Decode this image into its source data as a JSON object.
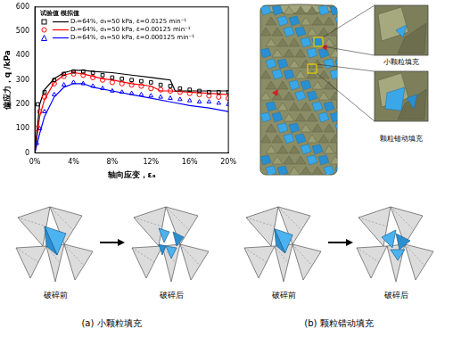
{
  "chart_data": {
    "type": "line",
    "x_label": "轴向应变，εₐ",
    "y_label": "偏应力，q /kPa",
    "legend_title": "试验值 模拟值",
    "legend": "upper left",
    "grid": false,
    "xlim": [
      0,
      20
    ],
    "xticks": [
      {
        "value": 0,
        "label": "0%"
      },
      {
        "value": 4,
        "label": "4%"
      },
      {
        "value": 8,
        "label": "8%"
      },
      {
        "value": 12,
        "label": "12%"
      },
      {
        "value": 16,
        "label": "16%"
      },
      {
        "value": 20,
        "label": "20%"
      }
    ],
    "ylim": [
      0,
      600
    ],
    "yticks": [
      0,
      100,
      200,
      300,
      400,
      500,
      600
    ],
    "series": [
      {
        "name": "Dᵣ=64%, σ₃=50 kPa, ε̇=0.0125 min⁻¹",
        "type": "scatter",
        "marker": "square",
        "color": "#000000",
        "x": [
          0.3,
          1,
          2,
          3,
          4,
          5,
          6,
          7,
          8,
          9,
          10,
          11,
          12,
          13,
          14,
          15,
          16,
          17,
          18,
          19,
          20
        ],
        "values": [
          200,
          250,
          300,
          325,
          335,
          335,
          330,
          320,
          310,
          305,
          300,
          295,
          290,
          280,
          275,
          265,
          260,
          255,
          250,
          250,
          250
        ]
      },
      {
        "name": "Dᵣ=64%, σ₃=50 kPa, ε̇=0.00125 min⁻¹",
        "type": "scatter",
        "marker": "circle",
        "color": "#ff0000",
        "x": [
          0.2,
          0.5,
          1,
          2,
          3,
          4,
          5,
          6,
          7,
          8,
          9,
          10,
          11,
          12,
          13,
          14,
          15,
          16,
          17,
          18,
          19,
          20
        ],
        "values": [
          100,
          170,
          230,
          285,
          315,
          325,
          320,
          310,
          300,
          290,
          285,
          280,
          275,
          265,
          260,
          255,
          250,
          245,
          240,
          235,
          230,
          225
        ]
      },
      {
        "name": "Dᵣ=64%, σ₃=50 kPa, ε̇=0.000125 min⁻¹",
        "type": "scatter",
        "marker": "triangle",
        "color": "#0000ff",
        "x": [
          0.2,
          0.5,
          1,
          2,
          3,
          4,
          5,
          6,
          7,
          8,
          9,
          10,
          11,
          12,
          13,
          14,
          15,
          16,
          17,
          18,
          19,
          20
        ],
        "values": [
          40,
          100,
          170,
          240,
          280,
          290,
          285,
          275,
          265,
          255,
          250,
          245,
          240,
          235,
          230,
          225,
          220,
          215,
          210,
          210,
          205,
          200
        ]
      },
      {
        "name": "Dᵣ=64%, σ₃=50 kPa, ε̇=0.0125 min⁻¹",
        "type": "line",
        "line_style": "solid",
        "color": "#000000",
        "x": [
          0,
          0.5,
          1,
          2,
          3,
          4,
          5,
          6,
          8,
          10,
          12,
          13,
          14,
          14.5,
          16,
          18,
          20
        ],
        "values": [
          0,
          200,
          260,
          305,
          330,
          340,
          340,
          335,
          330,
          320,
          310,
          305,
          300,
          255,
          255,
          255,
          255
        ]
      },
      {
        "name": "Dᵣ=64%, σ₃=50 kPa, ε̇=0.00125 min⁻¹",
        "type": "line",
        "line_style": "solid",
        "color": "#ff0000",
        "x": [
          0,
          0.5,
          1,
          2,
          3,
          4,
          5,
          6,
          7,
          8,
          10,
          12,
          13,
          14,
          16,
          18,
          20
        ],
        "values": [
          0,
          150,
          220,
          290,
          320,
          330,
          325,
          315,
          305,
          300,
          285,
          275,
          255,
          255,
          250,
          245,
          240
        ]
      },
      {
        "name": "Dᵣ=64%, σ₃=50 kPa, ε̇=0.000125 min⁻¹",
        "type": "line",
        "line_style": "solid",
        "color": "#0000ff",
        "x": [
          0,
          0.5,
          1,
          2,
          3,
          4,
          5,
          6,
          8,
          10,
          12,
          14,
          16,
          18,
          20
        ],
        "values": [
          0,
          80,
          150,
          230,
          270,
          285,
          285,
          270,
          255,
          240,
          225,
          210,
          195,
          185,
          170
        ]
      }
    ]
  },
  "specimen": {
    "callouts": [
      "小颗粒填充",
      "颗粒错动填充"
    ]
  },
  "diagrams": [
    {
      "before": "破碎前",
      "after": "破碎后",
      "caption": "(a) 小颗粒填充"
    },
    {
      "before": "破碎前",
      "after": "破碎后",
      "caption": "(b) 颗粒错动填充"
    }
  ]
}
